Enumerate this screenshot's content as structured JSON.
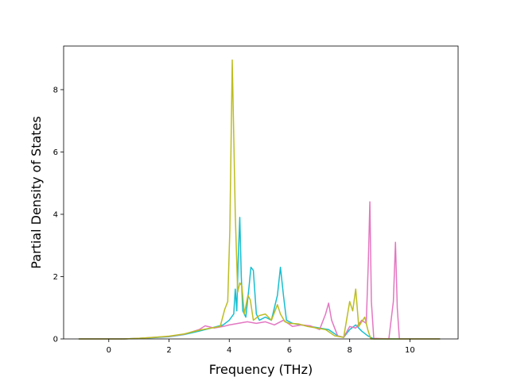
{
  "chart_data": {
    "type": "line",
    "xlabel": "Frequency (THz)",
    "ylabel": "Partial Density of States",
    "xlim": [
      -1.5,
      11.6
    ],
    "ylim": [
      0,
      9.4
    ],
    "xticks": [
      0,
      2,
      4,
      6,
      8,
      10
    ],
    "yticks": [
      0,
      2,
      4,
      6,
      8
    ],
    "grid": false,
    "series": [
      {
        "color": "#17becf",
        "points": [
          [
            -1.0,
            0
          ],
          [
            0.5,
            0
          ],
          [
            1.0,
            0.02
          ],
          [
            1.5,
            0.04
          ],
          [
            2.0,
            0.07
          ],
          [
            2.5,
            0.14
          ],
          [
            3.0,
            0.25
          ],
          [
            3.4,
            0.35
          ],
          [
            3.8,
            0.45
          ],
          [
            4.0,
            0.6
          ],
          [
            4.15,
            0.8
          ],
          [
            4.2,
            1.6
          ],
          [
            4.25,
            0.9
          ],
          [
            4.3,
            2.6
          ],
          [
            4.35,
            3.9
          ],
          [
            4.4,
            2.0
          ],
          [
            4.45,
            0.9
          ],
          [
            4.55,
            0.7
          ],
          [
            4.65,
            1.6
          ],
          [
            4.72,
            2.3
          ],
          [
            4.8,
            2.2
          ],
          [
            4.9,
            0.8
          ],
          [
            5.0,
            0.6
          ],
          [
            5.2,
            0.7
          ],
          [
            5.4,
            0.6
          ],
          [
            5.6,
            1.4
          ],
          [
            5.7,
            2.3
          ],
          [
            5.8,
            1.4
          ],
          [
            5.9,
            0.6
          ],
          [
            6.1,
            0.5
          ],
          [
            6.4,
            0.45
          ],
          [
            6.7,
            0.4
          ],
          [
            7.0,
            0.35
          ],
          [
            7.3,
            0.3
          ],
          [
            7.6,
            0.1
          ],
          [
            7.8,
            0.05
          ],
          [
            8.0,
            0.3
          ],
          [
            8.2,
            0.45
          ],
          [
            8.4,
            0.25
          ],
          [
            8.6,
            0.1
          ],
          [
            8.8,
            0
          ],
          [
            11.0,
            0
          ]
        ]
      },
      {
        "color": "#e377c2",
        "points": [
          [
            -1.0,
            0
          ],
          [
            0.5,
            0
          ],
          [
            1.0,
            0.02
          ],
          [
            1.5,
            0.05
          ],
          [
            2.0,
            0.08
          ],
          [
            2.5,
            0.15
          ],
          [
            3.0,
            0.3
          ],
          [
            3.2,
            0.42
          ],
          [
            3.5,
            0.35
          ],
          [
            3.8,
            0.4
          ],
          [
            4.0,
            0.45
          ],
          [
            4.3,
            0.5
          ],
          [
            4.6,
            0.55
          ],
          [
            4.9,
            0.5
          ],
          [
            5.2,
            0.55
          ],
          [
            5.5,
            0.45
          ],
          [
            5.8,
            0.6
          ],
          [
            6.1,
            0.4
          ],
          [
            6.4,
            0.45
          ],
          [
            6.7,
            0.42
          ],
          [
            7.0,
            0.3
          ],
          [
            7.2,
            0.8
          ],
          [
            7.3,
            1.15
          ],
          [
            7.4,
            0.6
          ],
          [
            7.6,
            0.1
          ],
          [
            7.8,
            0.05
          ],
          [
            8.0,
            0.4
          ],
          [
            8.2,
            0.35
          ],
          [
            8.4,
            0.6
          ],
          [
            8.55,
            0.5
          ],
          [
            8.62,
            2.5
          ],
          [
            8.67,
            4.4
          ],
          [
            8.72,
            1.2
          ],
          [
            8.8,
            0.02
          ],
          [
            9.3,
            0
          ],
          [
            9.45,
            1.2
          ],
          [
            9.52,
            3.1
          ],
          [
            9.58,
            1.0
          ],
          [
            9.65,
            0
          ],
          [
            11.0,
            0
          ]
        ]
      },
      {
        "color": "#bcbd22",
        "points": [
          [
            -1.0,
            0
          ],
          [
            0.5,
            0
          ],
          [
            1.0,
            0.02
          ],
          [
            1.5,
            0.05
          ],
          [
            2.0,
            0.09
          ],
          [
            2.5,
            0.16
          ],
          [
            3.0,
            0.28
          ],
          [
            3.4,
            0.35
          ],
          [
            3.7,
            0.4
          ],
          [
            3.85,
            0.95
          ],
          [
            3.95,
            1.2
          ],
          [
            4.02,
            3.5
          ],
          [
            4.1,
            8.95
          ],
          [
            4.2,
            4.0
          ],
          [
            4.28,
            1.5
          ],
          [
            4.35,
            1.8
          ],
          [
            4.42,
            1.7
          ],
          [
            4.5,
            0.8
          ],
          [
            4.62,
            1.4
          ],
          [
            4.7,
            1.25
          ],
          [
            4.8,
            0.6
          ],
          [
            5.0,
            0.75
          ],
          [
            5.2,
            0.8
          ],
          [
            5.4,
            0.6
          ],
          [
            5.6,
            1.1
          ],
          [
            5.7,
            0.8
          ],
          [
            5.85,
            0.55
          ],
          [
            6.0,
            0.5
          ],
          [
            6.3,
            0.48
          ],
          [
            6.6,
            0.4
          ],
          [
            6.9,
            0.35
          ],
          [
            7.2,
            0.3
          ],
          [
            7.5,
            0.1
          ],
          [
            7.8,
            0.05
          ],
          [
            8.0,
            1.2
          ],
          [
            8.1,
            0.9
          ],
          [
            8.2,
            1.6
          ],
          [
            8.3,
            0.4
          ],
          [
            8.5,
            0.7
          ],
          [
            8.6,
            0.3
          ],
          [
            8.7,
            0
          ],
          [
            11.0,
            0
          ]
        ]
      }
    ]
  }
}
